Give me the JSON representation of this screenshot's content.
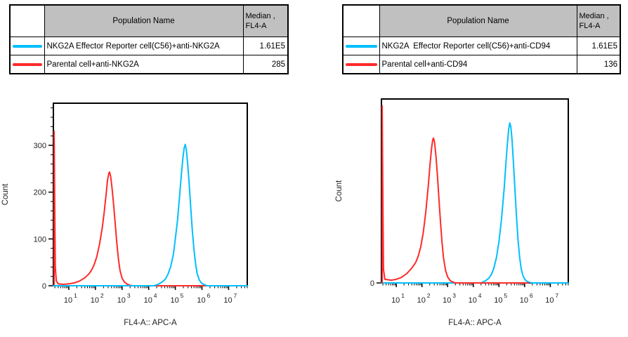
{
  "left_panel": {
    "table": {
      "headers": {
        "population": "Population Name",
        "median_line1": "Median ,",
        "median_line2": "FL4-A"
      },
      "rows": [
        {
          "swatch_color": "#00bfff",
          "name": "NKG2A Effector Reporter cell(C56)+anti-NKG2A",
          "median": "1.61E5"
        },
        {
          "swatch_color": "#ff2a2a",
          "name": "Parental cell+anti-NKG2A",
          "median": "285"
        }
      ]
    }
  },
  "right_panel": {
    "table": {
      "headers": {
        "population": "Population Name",
        "median_line1": "Median ,",
        "median_line2": "FL4-A"
      },
      "rows": [
        {
          "swatch_color": "#00bfff",
          "name": "NKG2A  Effector Reporter cell(C56)+anti-CD94",
          "median": "1.61E5"
        },
        {
          "swatch_color": "#ff2a2a",
          "name": "Parental cell+anti-CD94",
          "median": "136"
        }
      ]
    }
  },
  "chart_data": [
    {
      "type": "line",
      "title": "",
      "xlabel": "FL4-A:: APC-A",
      "ylabel": "Count",
      "x_scale": "log10",
      "x_tick_base": "10",
      "x_range_log10": [
        0.42,
        7.7
      ],
      "x_decade_ticks": [
        1,
        2,
        3,
        4,
        5,
        6,
        7
      ],
      "y_range": [
        0,
        390
      ],
      "y_labeled_ticks": [
        0,
        100,
        200,
        300
      ],
      "y_minor_tick_step": 20,
      "grid": false,
      "legend_position": "table-above",
      "draw_order": [
        1,
        0
      ],
      "series": [
        {
          "name": "NKG2A Effector Reporter cell(C56)+anti-NKG2A",
          "color": "#00bfff",
          "median_fl4a": "1.61E5",
          "points": [
            [
              0.42,
              0
            ],
            [
              4.2,
              0
            ],
            [
              4.35,
              3
            ],
            [
              4.5,
              8
            ],
            [
              4.62,
              14
            ],
            [
              4.72,
              24
            ],
            [
              4.82,
              40
            ],
            [
              4.92,
              65
            ],
            [
              5.0,
              100
            ],
            [
              5.08,
              140
            ],
            [
              5.15,
              185
            ],
            [
              5.22,
              235
            ],
            [
              5.28,
              272
            ],
            [
              5.33,
              294
            ],
            [
              5.37,
              302
            ],
            [
              5.41,
              291
            ],
            [
              5.46,
              262
            ],
            [
              5.52,
              216
            ],
            [
              5.58,
              165
            ],
            [
              5.64,
              116
            ],
            [
              5.7,
              76
            ],
            [
              5.76,
              46
            ],
            [
              5.82,
              26
            ],
            [
              5.9,
              12
            ],
            [
              6.0,
              5
            ],
            [
              6.1,
              2
            ],
            [
              6.2,
              0
            ],
            [
              7.7,
              0
            ]
          ]
        },
        {
          "name": "Parental cell+anti-NKG2A",
          "color": "#ff2a2a",
          "median_fl4a": "285",
          "points": [
            [
              0.45,
              0
            ],
            [
              0.45,
              330
            ],
            [
              0.47,
              175
            ],
            [
              0.49,
              40
            ],
            [
              0.53,
              10
            ],
            [
              0.6,
              4
            ],
            [
              0.8,
              3
            ],
            [
              1.0,
              4
            ],
            [
              1.2,
              6
            ],
            [
              1.4,
              10
            ],
            [
              1.6,
              17
            ],
            [
              1.75,
              25
            ],
            [
              1.85,
              33
            ],
            [
              1.95,
              45
            ],
            [
              2.05,
              62
            ],
            [
              2.15,
              88
            ],
            [
              2.25,
              122
            ],
            [
              2.33,
              158
            ],
            [
              2.4,
              196
            ],
            [
              2.45,
              225
            ],
            [
              2.5,
              240
            ],
            [
              2.53,
              243
            ],
            [
              2.57,
              234
            ],
            [
              2.62,
              210
            ],
            [
              2.68,
              174
            ],
            [
              2.74,
              133
            ],
            [
              2.8,
              93
            ],
            [
              2.86,
              58
            ],
            [
              2.92,
              33
            ],
            [
              3.0,
              16
            ],
            [
              3.1,
              7
            ],
            [
              3.2,
              3
            ],
            [
              3.3,
              1
            ],
            [
              3.4,
              0
            ],
            [
              7.7,
              0
            ]
          ]
        }
      ]
    },
    {
      "type": "line",
      "title": "",
      "xlabel": "FL4-A:: APC-A",
      "ylabel": "Count",
      "x_scale": "log10",
      "x_tick_base": "10",
      "x_range_log10": [
        0.42,
        7.7
      ],
      "x_decade_ticks": [
        1,
        2,
        3,
        4,
        5,
        6,
        7
      ],
      "y_range": [
        0,
        400
      ],
      "y_labeled_ticks": [
        0
      ],
      "y_minor_tick_step": 0,
      "grid": false,
      "legend_position": "table-above",
      "draw_order": [
        0,
        1
      ],
      "series": [
        {
          "name": "NKG2A  Effector Reporter cell(C56)+anti-CD94",
          "color": "#00bfff",
          "median_fl4a": "1.61E5",
          "points": [
            [
              0.42,
              0
            ],
            [
              4.3,
              0
            ],
            [
              4.45,
              4
            ],
            [
              4.6,
              10
            ],
            [
              4.7,
              18
            ],
            [
              4.8,
              32
            ],
            [
              4.9,
              55
            ],
            [
              5.0,
              90
            ],
            [
              5.1,
              140
            ],
            [
              5.2,
              205
            ],
            [
              5.27,
              260
            ],
            [
              5.33,
              305
            ],
            [
              5.38,
              335
            ],
            [
              5.42,
              348
            ],
            [
              5.46,
              340
            ],
            [
              5.51,
              310
            ],
            [
              5.56,
              264
            ],
            [
              5.62,
              205
            ],
            [
              5.68,
              146
            ],
            [
              5.74,
              95
            ],
            [
              5.8,
              58
            ],
            [
              5.86,
              32
            ],
            [
              5.92,
              18
            ],
            [
              6.0,
              8
            ],
            [
              6.1,
              3
            ],
            [
              6.2,
              1
            ],
            [
              6.3,
              0
            ],
            [
              7.7,
              0
            ]
          ]
        },
        {
          "name": "Parental cell+anti-CD94",
          "color": "#ff2a2a",
          "median_fl4a": "136",
          "points": [
            [
              0.45,
              0
            ],
            [
              0.45,
              385
            ],
            [
              0.47,
              230
            ],
            [
              0.5,
              30
            ],
            [
              0.55,
              8
            ],
            [
              0.8,
              6
            ],
            [
              1.0,
              8
            ],
            [
              1.2,
              12
            ],
            [
              1.4,
              20
            ],
            [
              1.6,
              32
            ],
            [
              1.75,
              44
            ],
            [
              1.85,
              58
            ],
            [
              1.95,
              78
            ],
            [
              2.05,
              110
            ],
            [
              2.15,
              155
            ],
            [
              2.25,
              215
            ],
            [
              2.32,
              262
            ],
            [
              2.38,
              296
            ],
            [
              2.42,
              312
            ],
            [
              2.45,
              315
            ],
            [
              2.49,
              306
            ],
            [
              2.54,
              278
            ],
            [
              2.6,
              234
            ],
            [
              2.66,
              184
            ],
            [
              2.72,
              134
            ],
            [
              2.78,
              89
            ],
            [
              2.84,
              54
            ],
            [
              2.92,
              27
            ],
            [
              3.0,
              13
            ],
            [
              3.1,
              5
            ],
            [
              3.2,
              2
            ],
            [
              3.3,
              0
            ],
            [
              6.15,
              0
            ]
          ]
        }
      ]
    }
  ]
}
